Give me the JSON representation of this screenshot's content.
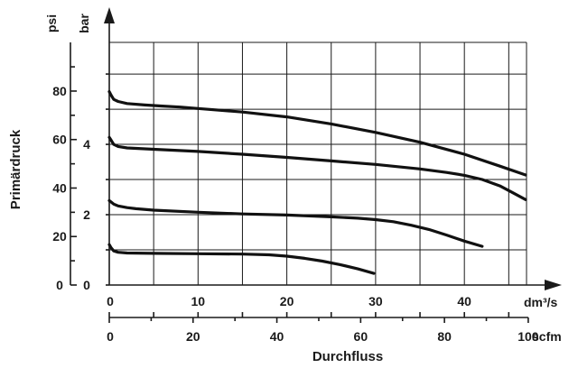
{
  "chart_data": {
    "type": "line",
    "ylabel": "Primärdruck",
    "xlabel": "Durchfluss",
    "x_units": {
      "primary": "dm³/s",
      "secondary": "scfm"
    },
    "y_units": {
      "primary": "bar",
      "secondary": "psi"
    },
    "xlim_dm3s": [
      0,
      47
    ],
    "ylim_bar": [
      0,
      6.9
    ],
    "x_primary_ticks": [
      "0",
      "10",
      "20",
      "30",
      "40"
    ],
    "x_primary_tick_values": [
      0,
      10,
      20,
      30,
      40
    ],
    "x_secondary_ticks": [
      "0",
      "20",
      "40",
      "60",
      "80",
      "100"
    ],
    "x_secondary_tick_values": [
      0,
      20,
      40,
      60,
      80,
      100
    ],
    "y_primary_ticks": [
      "0",
      "2",
      "4"
    ],
    "y_primary_tick_values": [
      0,
      2,
      4
    ],
    "y_secondary_ticks": [
      "0",
      "20",
      "40",
      "60",
      "80"
    ],
    "y_secondary_tick_values": [
      0,
      20,
      40,
      60,
      80
    ],
    "grid": true,
    "series": [
      {
        "x": [
          0,
          0.2,
          0.5,
          1,
          2,
          4,
          6,
          8,
          10,
          15,
          20,
          25,
          30,
          35,
          40,
          44,
          46.9
        ],
        "y": [
          5.5,
          5.4,
          5.28,
          5.22,
          5.16,
          5.12,
          5.09,
          5.06,
          5.02,
          4.92,
          4.78,
          4.58,
          4.34,
          4.06,
          3.72,
          3.38,
          3.13
        ]
      },
      {
        "x": [
          0,
          0.2,
          0.5,
          1,
          2,
          5,
          10,
          15,
          20,
          25,
          30,
          35,
          38,
          40,
          42,
          44,
          45.5,
          46.9
        ],
        "y": [
          4.2,
          4.12,
          4.0,
          3.94,
          3.9,
          3.86,
          3.8,
          3.72,
          3.63,
          3.53,
          3.43,
          3.3,
          3.2,
          3.12,
          3.0,
          2.82,
          2.62,
          2.43
        ]
      },
      {
        "x": [
          0,
          0.5,
          1,
          2,
          3,
          5,
          10,
          15,
          20,
          25,
          28,
          30,
          32,
          34,
          36,
          38,
          40,
          42
        ],
        "y": [
          2.4,
          2.3,
          2.25,
          2.2,
          2.17,
          2.13,
          2.07,
          2.02,
          1.99,
          1.94,
          1.9,
          1.86,
          1.8,
          1.7,
          1.58,
          1.42,
          1.25,
          1.1
        ]
      },
      {
        "x": [
          0,
          0.2,
          0.5,
          1,
          2,
          5,
          10,
          15,
          18,
          20,
          22,
          24,
          26,
          28,
          29.8
        ],
        "y": [
          1.15,
          1.06,
          0.97,
          0.93,
          0.91,
          0.9,
          0.89,
          0.88,
          0.86,
          0.82,
          0.76,
          0.68,
          0.58,
          0.46,
          0.33
        ]
      }
    ]
  }
}
